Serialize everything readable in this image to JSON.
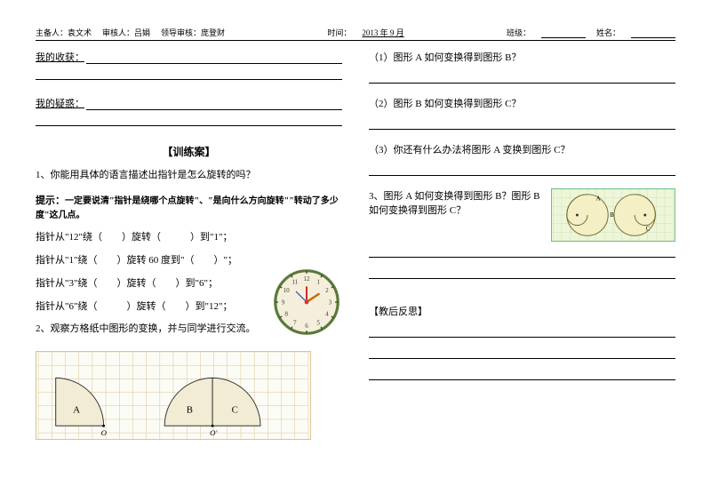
{
  "header": {
    "prepared": "主备人：袁文术",
    "reviewed": "审核人：吕娟",
    "lead": "领导审核：庞登财",
    "time_label": "时间：",
    "time_value": "2013 年 9 月",
    "class_label": "班级：",
    "name_label": "姓名："
  },
  "left": {
    "gain_label": "我的收获：",
    "doubt_label": "我的疑惑：",
    "section_title": "【训练案】",
    "q1": "1、你能用具体的语言描述出指针是怎么旋转的吗？",
    "hint_label": "提示：",
    "hint_text": "一定要说清\"指针是绕哪个点旋转\"、\"是向什么方向旋转\"\"转动了多少度\"这几点。",
    "p1": "指针从\"12\"绕（　　）旋转（　　　）到\"1\"；",
    "p2": "指针从\"1\"绕（　　）旋转 60 度到\"（　　）\"；",
    "p3": "指针从\"3\"绕（　　）旋转（　　）到\"6\"；",
    "p4": "指针从\"6\"绕（　　　）旋转（　　）到\"12\"；",
    "q2": "2、观察方格纸中图形的变换，并与同学进行交流。",
    "shape_a": "A",
    "shape_b": "B",
    "shape_c": "C",
    "shape_o1": "O",
    "shape_o2": "O′"
  },
  "right": {
    "q1": "（1）图形 A 如何变换得到图形 B？",
    "q2": "（2）图形 B 如何变换得到图形 C？",
    "q3": "（3）你还有什么办法将图形 A 变换到图形 C？",
    "q4": "3、图形 A 如何变换得到图形 B？图形 B 如何变换得到图形 C？",
    "reflect": "【教后反思】",
    "spiral_a": "A",
    "spiral_b": "B",
    "spiral_c": "C"
  },
  "clock": {
    "face_fill": "#f6eedd",
    "face_stroke": "#5b7a3a",
    "tick_color": "#2a4a1a",
    "hand_hour": "#c46a00",
    "hand_min": "#c92f2f",
    "hand_sec": "#1b4aa8",
    "cap_color": "#cf3b32",
    "numerals": [
      "12",
      "1",
      "2",
      "3",
      "4",
      "5",
      "6",
      "7",
      "8",
      "9",
      "10",
      "11"
    ]
  },
  "grid": {
    "line_color": "#d8c48a",
    "fill": "#f3ecd5",
    "curve_stroke": "#333333"
  },
  "spiral": {
    "grid_color": "#cfe3b5",
    "circle_fill": "#f5efc6",
    "circle_stroke": "#6b6b2e",
    "dot_color": "#333333"
  }
}
